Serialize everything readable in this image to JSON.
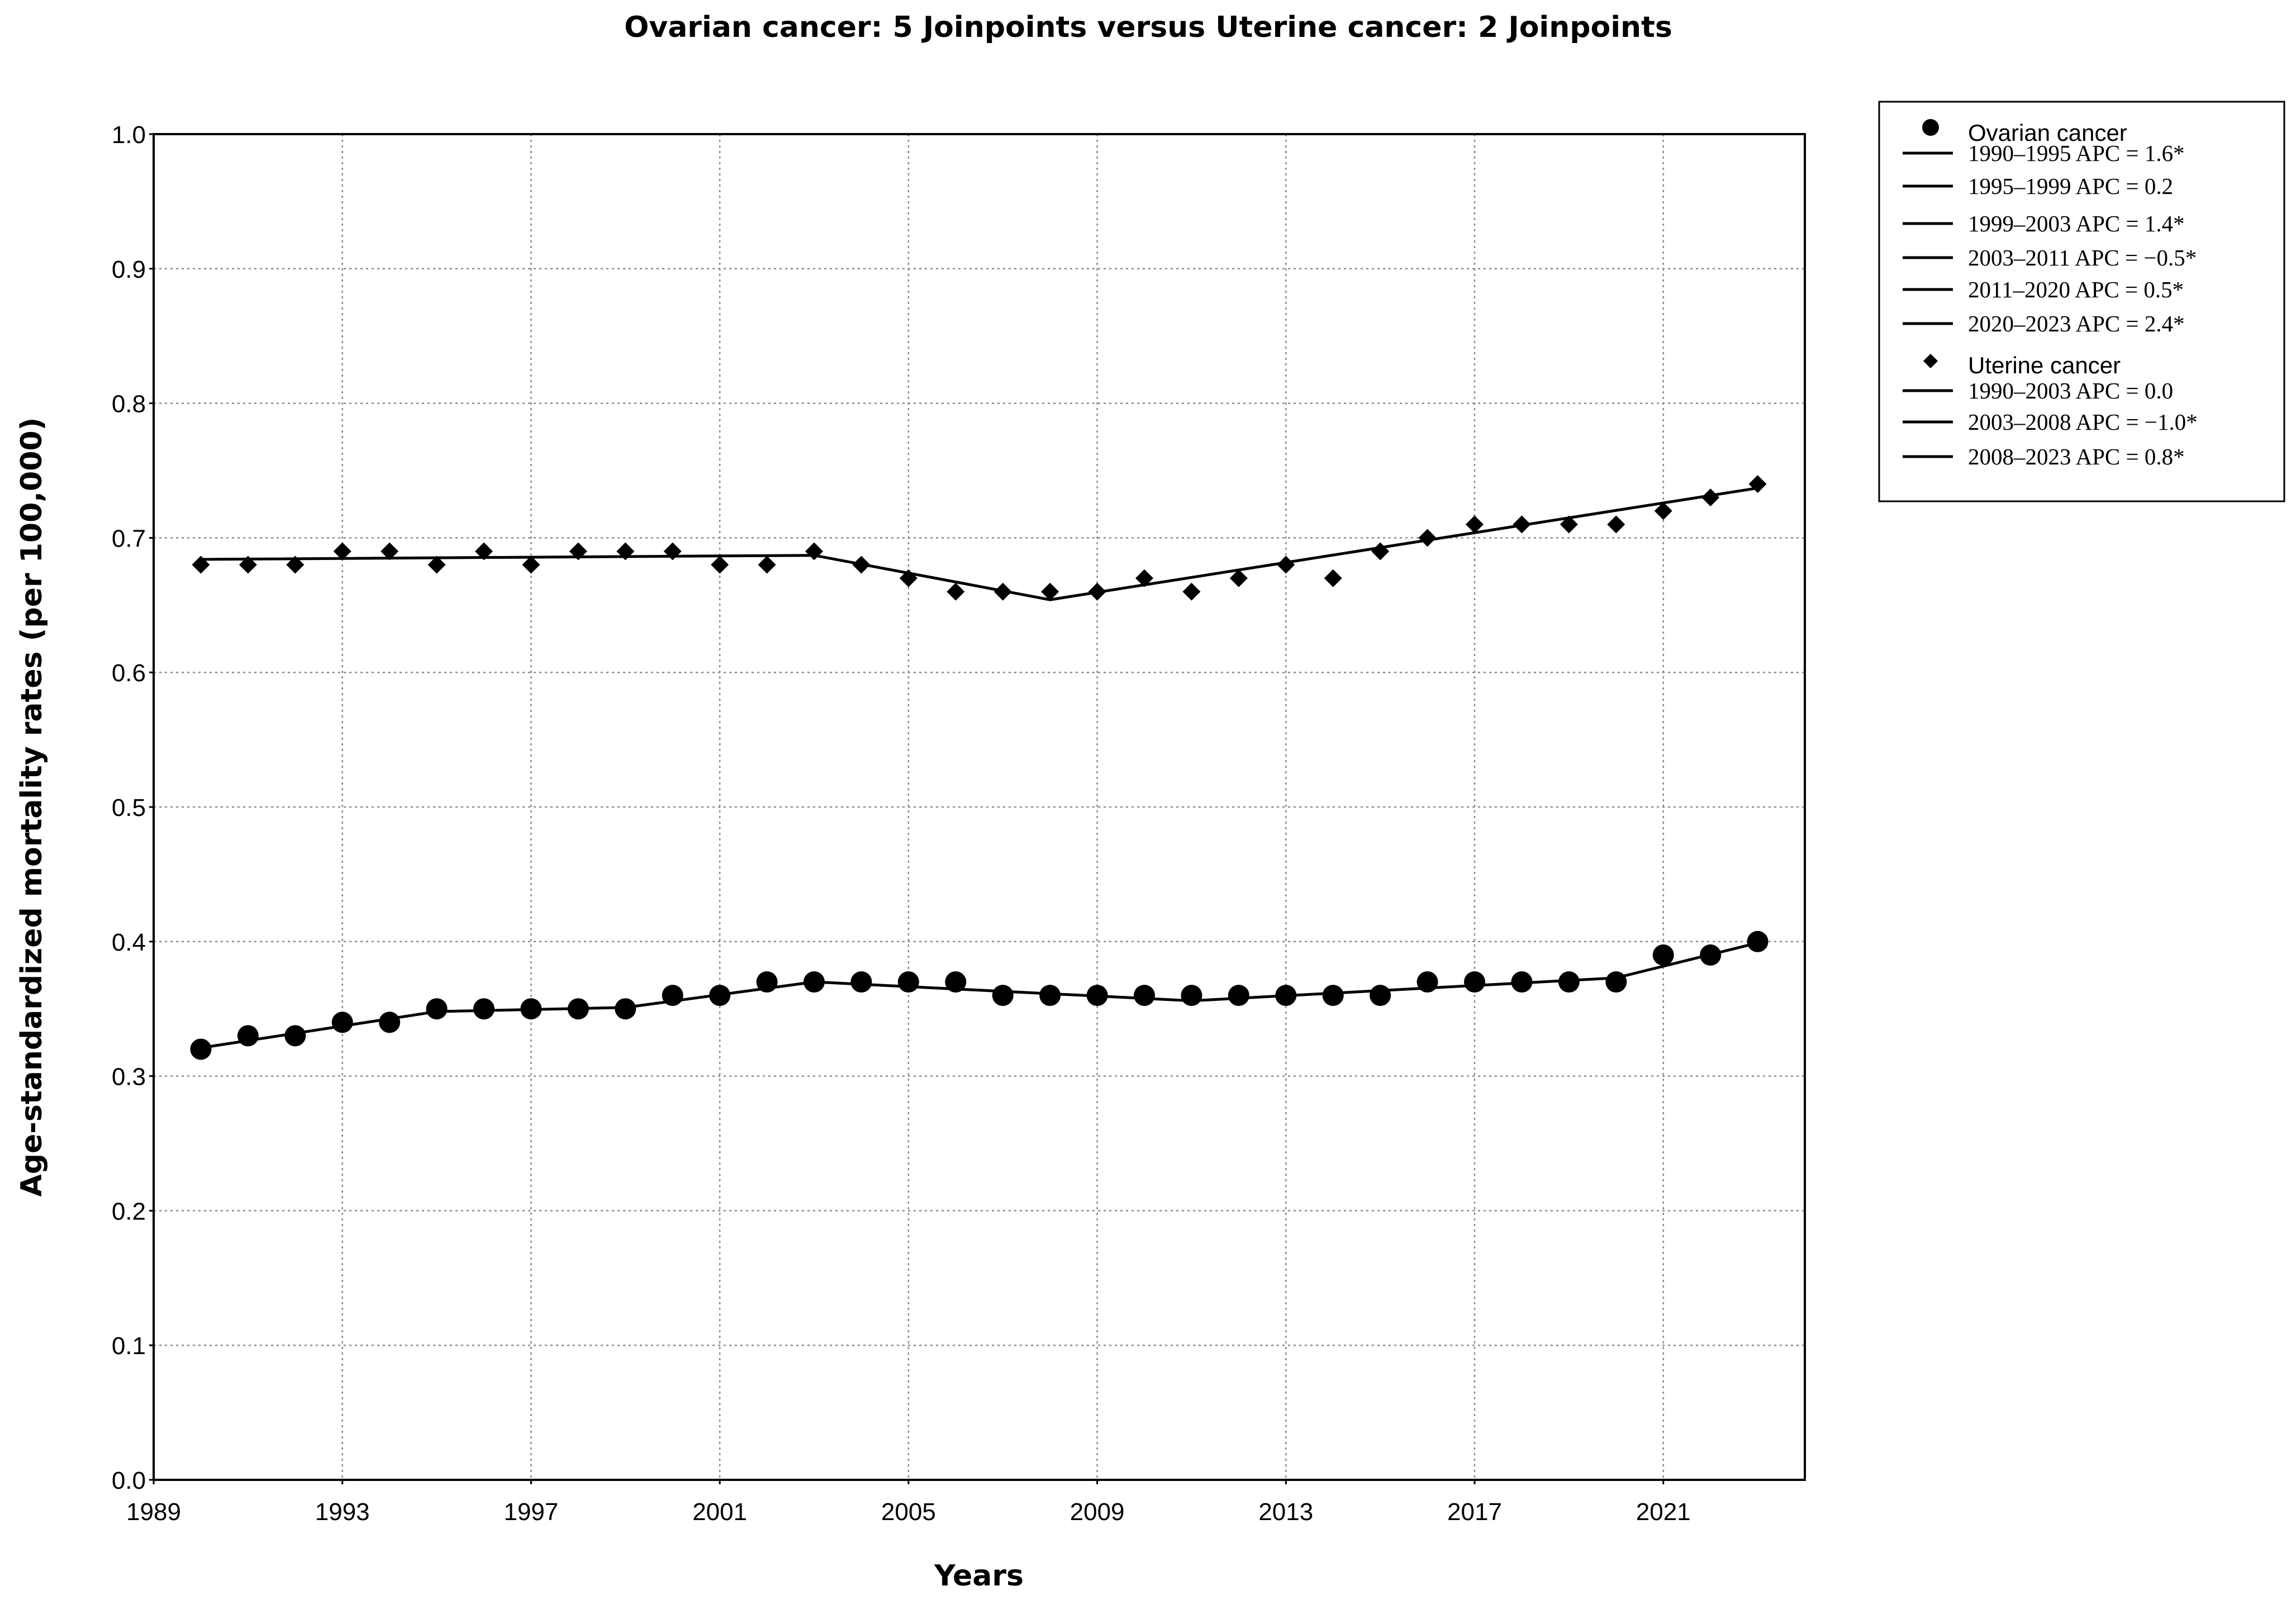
{
  "chart_data": {
    "type": "line",
    "title": "Ovarian cancer: 5 Joinpoints  versus  Uterine cancer: 2 Joinpoints",
    "xlabel": "Years",
    "ylabel": "Age-standardized mortality rates (per 100,000)",
    "xlim": [
      1989,
      2024
    ],
    "ylim": [
      0.0,
      1.0
    ],
    "x_ticks": [
      "1989",
      "1993",
      "1997",
      "2001",
      "2005",
      "2009",
      "2013",
      "2017",
      "2021"
    ],
    "y_ticks": [
      "0.0",
      "0.1",
      "0.2",
      "0.3",
      "0.4",
      "0.5",
      "0.6",
      "0.7",
      "0.8",
      "0.9",
      "1.0"
    ],
    "grid": true,
    "legend_position": "right",
    "series": [
      {
        "name": "Ovarian cancer",
        "marker": "circle",
        "x": [
          1990,
          1991,
          1992,
          1993,
          1994,
          1995,
          1996,
          1997,
          1998,
          1999,
          2000,
          2001,
          2002,
          2003,
          2004,
          2005,
          2006,
          2007,
          2008,
          2009,
          2010,
          2011,
          2012,
          2013,
          2014,
          2015,
          2016,
          2017,
          2018,
          2019,
          2020,
          2021,
          2022,
          2023
        ],
        "y": [
          0.32,
          0.33,
          0.33,
          0.34,
          0.34,
          0.35,
          0.35,
          0.35,
          0.35,
          0.35,
          0.36,
          0.36,
          0.37,
          0.37,
          0.37,
          0.37,
          0.37,
          0.36,
          0.36,
          0.36,
          0.36,
          0.36,
          0.36,
          0.36,
          0.36,
          0.36,
          0.37,
          0.37,
          0.37,
          0.37,
          0.37,
          0.39,
          0.39,
          0.4
        ],
        "fit_x": [
          1990,
          1995,
          1999,
          2003,
          2011,
          2020,
          2023
        ],
        "fit_y": [
          0.321,
          0.348,
          0.351,
          0.37,
          0.356,
          0.373,
          0.399
        ]
      },
      {
        "name": "Uterine cancer",
        "marker": "diamond",
        "x": [
          1990,
          1991,
          1992,
          1993,
          1994,
          1995,
          1996,
          1997,
          1998,
          1999,
          2000,
          2001,
          2002,
          2003,
          2004,
          2005,
          2006,
          2007,
          2008,
          2009,
          2010,
          2011,
          2012,
          2013,
          2014,
          2015,
          2016,
          2017,
          2018,
          2019,
          2020,
          2021,
          2022,
          2023
        ],
        "y": [
          0.68,
          0.68,
          0.68,
          0.69,
          0.69,
          0.68,
          0.69,
          0.68,
          0.69,
          0.69,
          0.69,
          0.68,
          0.68,
          0.69,
          0.68,
          0.67,
          0.66,
          0.66,
          0.66,
          0.66,
          0.67,
          0.66,
          0.67,
          0.68,
          0.67,
          0.69,
          0.7,
          0.71,
          0.71,
          0.71,
          0.71,
          0.72,
          0.73,
          0.74
        ],
        "fit_x": [
          1990,
          2003,
          2008,
          2023
        ],
        "fit_y": [
          0.684,
          0.687,
          0.654,
          0.737
        ]
      }
    ],
    "legend": {
      "ovarian_title": "Ovarian cancer",
      "ovarian_segments": [
        "1990–1995 APC = 1.6*",
        "1995–1999 APC = 0.2",
        "1999–2003 APC = 1.4*",
        "2003–2011 APC = −0.5*",
        "2011–2020 APC = 0.5*",
        "2020–2023 APC = 2.4*"
      ],
      "uterine_title": "Uterine cancer",
      "uterine_segments": [
        "1990–2003 APC = 0.0",
        "2003–2008 APC = −1.0*",
        "2008–2023 APC = 0.8*"
      ]
    },
    "colors": {
      "line": "#000000",
      "marker": "#000000",
      "grid": "#8a8a8a"
    }
  }
}
